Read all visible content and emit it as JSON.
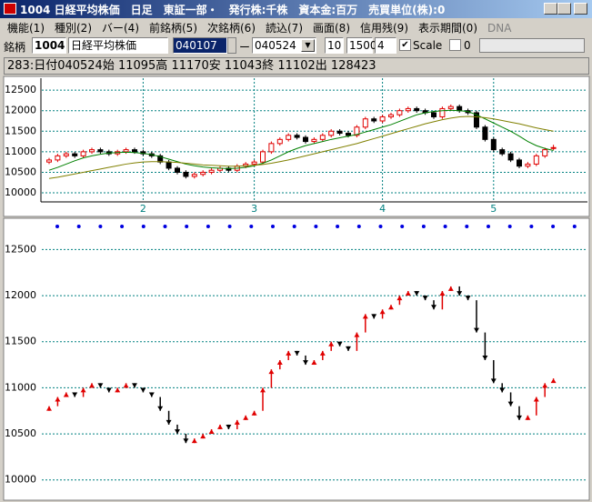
{
  "window": {
    "title": "1004 日経平均株価　日足　東証一部・　発行株:千株　資本金:百万　売買単位(株):0",
    "menu": [
      "機能(1)",
      "種別(2)",
      "バー(4)",
      "前銘柄(5)",
      "次銘柄(6)",
      "読込(7)",
      "画面(8)",
      "信用残(9)",
      "表示期間(0)",
      "DNA"
    ],
    "toolbar": {
      "label": "銘柄",
      "code": "1004",
      "name": "日経平均株価",
      "from": "040107",
      "dash": "ー",
      "to": "040524",
      "field1": "10",
      "field2": "1500",
      "field3": "4",
      "scale_checked": true,
      "scale": "Scale",
      "option_checked": false,
      "option": "0"
    }
  },
  "info": "283:日付040524始 11095高 11170安 11043終 11102出 128423",
  "chart_data": [
    {
      "type": "candlestick",
      "categories": [
        null,
        null,
        null,
        null,
        null,
        null,
        null,
        null,
        null,
        null,
        null,
        "2",
        null,
        null,
        null,
        null,
        null,
        null,
        null,
        null,
        null,
        null,
        null,
        null,
        "3",
        null,
        null,
        null,
        null,
        null,
        null,
        null,
        null,
        null,
        null,
        null,
        null,
        null,
        null,
        "4",
        null,
        null,
        null,
        null,
        null,
        null,
        null,
        null,
        null,
        null,
        null,
        null,
        "5",
        null,
        null,
        null,
        null,
        null,
        null,
        null
      ],
      "open": [
        10750,
        10800,
        10900,
        10950,
        10900,
        11000,
        11050,
        11000,
        10950,
        11000,
        11050,
        11000,
        10950,
        10900,
        10750,
        10600,
        10500,
        10400,
        10450,
        10500,
        10550,
        10600,
        10550,
        10650,
        10700,
        10750,
        11000,
        11200,
        11300,
        11400,
        11350,
        11250,
        11300,
        11400,
        11500,
        11450,
        11400,
        11600,
        11800,
        11750,
        11850,
        11900,
        12000,
        12050,
        12000,
        11950,
        11850,
        12050,
        12100,
        12000,
        11950,
        11600,
        11300,
        11050,
        10950,
        10800,
        10650,
        10700,
        10900,
        11095
      ],
      "high": [
        10850,
        10950,
        11000,
        11000,
        11050,
        11100,
        11100,
        11050,
        11050,
        11100,
        11100,
        11050,
        11000,
        10950,
        10800,
        10650,
        10550,
        10500,
        10550,
        10600,
        10650,
        10650,
        10700,
        10750,
        10800,
        11050,
        11250,
        11350,
        11450,
        11450,
        11400,
        11350,
        11450,
        11550,
        11550,
        11500,
        11650,
        11850,
        11850,
        11900,
        11950,
        12050,
        12100,
        12100,
        12050,
        12000,
        12100,
        12150,
        12150,
        12050,
        12000,
        11650,
        11350,
        11100,
        11000,
        10850,
        10750,
        10950,
        11100,
        11170
      ],
      "low": [
        10700,
        10750,
        10850,
        10850,
        10850,
        10950,
        10950,
        10900,
        10900,
        10950,
        10950,
        10900,
        10850,
        10700,
        10550,
        10450,
        10350,
        10350,
        10400,
        10450,
        10500,
        10500,
        10500,
        10600,
        10650,
        10700,
        10950,
        11150,
        11250,
        11300,
        11200,
        11200,
        11250,
        11350,
        11400,
        11350,
        11350,
        11550,
        11700,
        11700,
        11800,
        11850,
        11950,
        11950,
        11900,
        11800,
        11800,
        12000,
        11950,
        11900,
        11550,
        11250,
        11000,
        10900,
        10750,
        10600,
        10600,
        10650,
        10850,
        11043
      ],
      "close": [
        10800,
        10900,
        10950,
        10900,
        11000,
        11050,
        11000,
        10950,
        11000,
        11050,
        11000,
        10950,
        10900,
        10750,
        10600,
        10500,
        10400,
        10450,
        10500,
        10550,
        10600,
        10550,
        10650,
        10700,
        10750,
        11000,
        11200,
        11300,
        11400,
        11350,
        11250,
        11300,
        11400,
        11500,
        11450,
        11400,
        11600,
        11800,
        11750,
        11850,
        11900,
        12000,
        12050,
        12000,
        11950,
        11850,
        12050,
        12100,
        12000,
        11950,
        11600,
        11300,
        11050,
        10950,
        10800,
        10650,
        10700,
        10900,
        11050,
        11102
      ],
      "up_color": "#e00000",
      "down_color": "#000000",
      "lines": [
        {
          "color": "#008000",
          "values": [
            10550,
            10620,
            10700,
            10780,
            10850,
            10900,
            10940,
            10970,
            10980,
            10990,
            10980,
            10960,
            10930,
            10880,
            10820,
            10760,
            10700,
            10660,
            10630,
            10610,
            10600,
            10590,
            10600,
            10620,
            10660,
            10720,
            10800,
            10900,
            11000,
            11080,
            11150,
            11200,
            11250,
            11300,
            11340,
            11380,
            11420,
            11480,
            11540,
            11600,
            11660,
            11740,
            11820,
            11900,
            11950,
            11980,
            12000,
            12010,
            12000,
            11980,
            11900,
            11800,
            11700,
            11600,
            11500,
            11380,
            11250,
            11150,
            11080,
            11030
          ]
        },
        {
          "color": "#808000",
          "values": [
            10350,
            10380,
            10420,
            10460,
            10500,
            10540,
            10580,
            10620,
            10660,
            10700,
            10730,
            10750,
            10760,
            10760,
            10750,
            10740,
            10720,
            10700,
            10680,
            10670,
            10660,
            10650,
            10650,
            10660,
            10670,
            10690,
            10720,
            10760,
            10800,
            10850,
            10900,
            10950,
            11000,
            11050,
            11100,
            11150,
            11200,
            11260,
            11320,
            11380,
            11440,
            11500,
            11560,
            11620,
            11680,
            11730,
            11780,
            11820,
            11850,
            11860,
            11850,
            11830,
            11800,
            11760,
            11720,
            11680,
            11630,
            11580,
            11540,
            11500
          ]
        }
      ],
      "ylim": [
        9780,
        12790
      ],
      "yticks": [
        10000,
        10500,
        11000,
        11500,
        12000,
        12500
      ],
      "grid": true,
      "grid_color": "#008080"
    },
    {
      "type": "arrow",
      "ylim": [
        9800,
        12800
      ],
      "yticks": [
        10000,
        10500,
        11000,
        11500,
        12000,
        12500
      ],
      "grid": true,
      "grid_color": "#008080",
      "up_color": "#e00000",
      "down_color": "#000000"
    }
  ]
}
